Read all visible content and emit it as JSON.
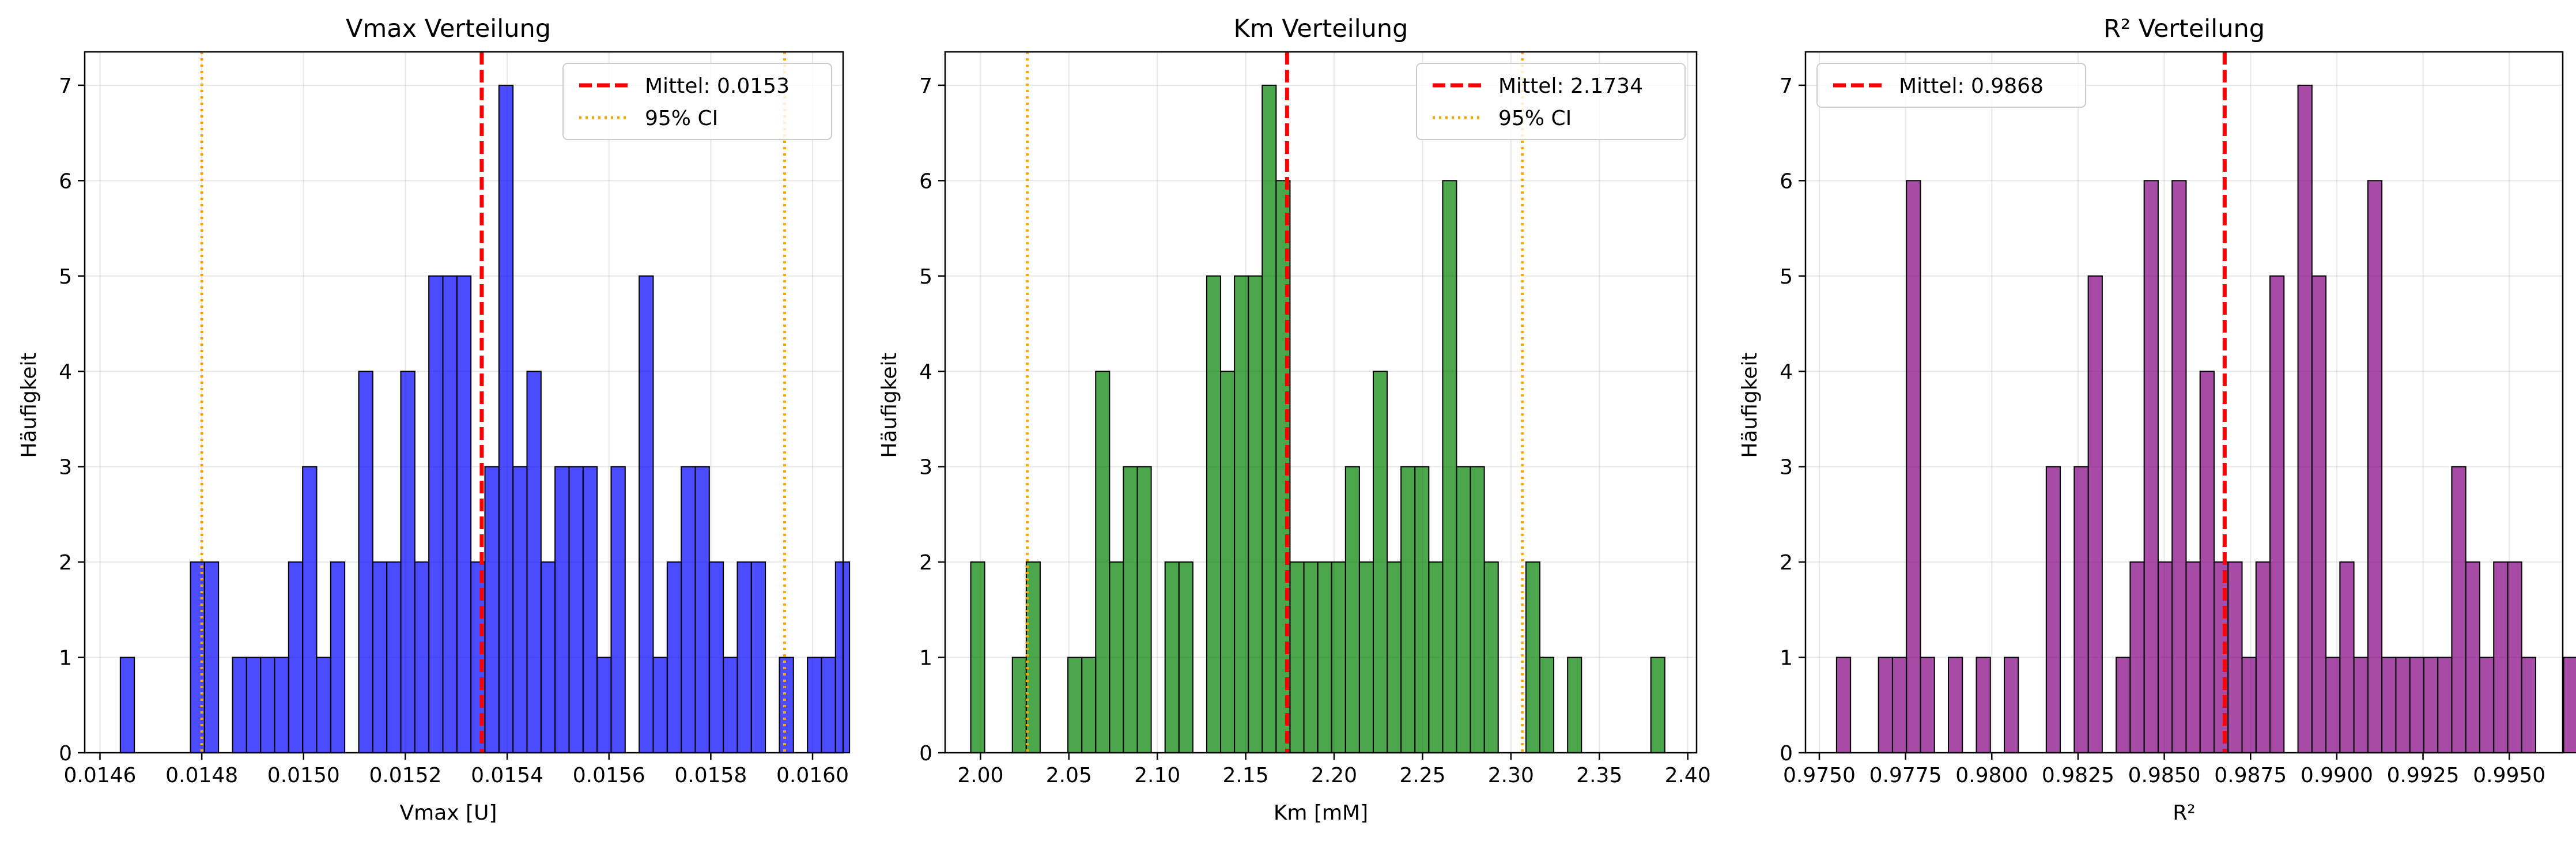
{
  "figure": {
    "background": "#ffffff"
  },
  "chart_data": [
    {
      "type": "bar",
      "title": "Vmax Verteilung",
      "xlabel": "Vmax [U]",
      "ylabel": "Häufigkeit",
      "xlim": [
        0.01457,
        0.01606
      ],
      "ylim": [
        0,
        7.35
      ],
      "xticks": [
        0.0146,
        0.0148,
        0.015,
        0.0152,
        0.0154,
        0.0156,
        0.0158,
        0.016
      ],
      "xtick_labels": [
        "0.0146",
        "0.0148",
        "0.0150",
        "0.0152",
        "0.0154",
        "0.0156",
        "0.0158",
        "0.0160"
      ],
      "yticks": [
        0,
        1,
        2,
        3,
        4,
        5,
        6,
        7
      ],
      "ytick_labels": [
        "0",
        "1",
        "2",
        "3",
        "4",
        "5",
        "6",
        "7"
      ],
      "grid": true,
      "bar_color": "#0000ff",
      "bar_opacity": 0.7,
      "edge_color": "#000000",
      "bin_start": 0.01464,
      "bin_width": 2.755e-05,
      "counts": [
        1,
        0,
        0,
        0,
        0,
        2,
        2,
        0,
        1,
        1,
        1,
        1,
        2,
        3,
        1,
        2,
        0,
        4,
        2,
        2,
        4,
        2,
        5,
        5,
        5,
        2,
        3,
        7,
        3,
        4,
        2,
        3,
        3,
        3,
        1,
        3,
        0,
        5,
        1,
        2,
        3,
        3,
        2,
        1,
        2,
        2,
        0,
        1,
        0,
        1,
        1,
        2
      ],
      "lines": [
        {
          "label": "Mittel: 0.0153",
          "x": 0.01535,
          "style": "dashed",
          "color": "#ff0000"
        },
        {
          "label": "95% CI",
          "x": 0.0148,
          "style": "dotted",
          "color": "#ffa500"
        },
        {
          "label": "",
          "x": 0.015945,
          "style": "dotted",
          "color": "#ffa500"
        }
      ],
      "legend_entries": [
        {
          "label": "Mittel: 0.0153",
          "style": "dashed",
          "color": "#ff0000"
        },
        {
          "label": "95% CI",
          "style": "dotted",
          "color": "#ffa500"
        }
      ],
      "legend_position": "top-right"
    },
    {
      "type": "bar",
      "title": "Km Verteilung",
      "xlabel": "Km [mM]",
      "ylabel": "Häufigkeit",
      "xlim": [
        1.98,
        2.405
      ],
      "ylim": [
        0,
        7.35
      ],
      "xticks": [
        2.0,
        2.05,
        2.1,
        2.15,
        2.2,
        2.25,
        2.3,
        2.35,
        2.4
      ],
      "xtick_labels": [
        "2.00",
        "2.05",
        "2.10",
        "2.15",
        "2.20",
        "2.25",
        "2.30",
        "2.35",
        "2.40"
      ],
      "yticks": [
        0,
        1,
        2,
        3,
        4,
        5,
        6,
        7
      ],
      "ytick_labels": [
        "0",
        "1",
        "2",
        "3",
        "4",
        "5",
        "6",
        "7"
      ],
      "grid": true,
      "bar_color": "#008000",
      "bar_opacity": 0.7,
      "edge_color": "#000000",
      "bin_start": 1.9945,
      "bin_width": 0.00785,
      "counts": [
        2,
        0,
        0,
        1,
        2,
        0,
        0,
        1,
        1,
        4,
        2,
        3,
        3,
        0,
        2,
        2,
        0,
        5,
        4,
        5,
        5,
        7,
        6,
        2,
        2,
        2,
        2,
        3,
        2,
        4,
        2,
        3,
        3,
        2,
        6,
        3,
        3,
        2,
        0,
        0,
        2,
        1,
        0,
        1,
        0,
        0,
        0,
        0,
        0,
        1
      ],
      "lines": [
        {
          "label": "Mittel: 2.1734",
          "x": 2.1734,
          "style": "dashed",
          "color": "#ff0000"
        },
        {
          "label": "95% CI",
          "x": 2.0265,
          "style": "dotted",
          "color": "#ffa500"
        },
        {
          "label": "",
          "x": 2.3065,
          "style": "dotted",
          "color": "#ffa500"
        }
      ],
      "legend_entries": [
        {
          "label": "Mittel: 2.1734",
          "style": "dashed",
          "color": "#ff0000"
        },
        {
          "label": "95% CI",
          "style": "dotted",
          "color": "#ffa500"
        }
      ],
      "legend_position": "top-right"
    },
    {
      "type": "bar",
      "title": "R² Verteilung",
      "xlabel": "R²",
      "ylabel": "Häufigkeit",
      "xlim": [
        0.9746,
        0.99655
      ],
      "ylim": [
        0,
        7.35
      ],
      "xticks": [
        0.975,
        0.9775,
        0.98,
        0.9825,
        0.985,
        0.9875,
        0.99,
        0.9925,
        0.995
      ],
      "xtick_labels": [
        "0.9750",
        "0.9775",
        "0.9800",
        "0.9825",
        "0.9850",
        "0.9875",
        "0.9900",
        "0.9925",
        "0.9950"
      ],
      "yticks": [
        0,
        1,
        2,
        3,
        4,
        5,
        6,
        7
      ],
      "ytick_labels": [
        "0",
        "1",
        "2",
        "3",
        "4",
        "5",
        "6",
        "7"
      ],
      "grid": true,
      "bar_color": "#800080",
      "bar_opacity": 0.7,
      "edge_color": "#000000",
      "bin_start": 0.9755,
      "bin_width": 0.0004053,
      "counts": [
        1,
        0,
        0,
        1,
        1,
        6,
        1,
        0,
        1,
        0,
        1,
        0,
        1,
        0,
        0,
        3,
        0,
        3,
        5,
        0,
        1,
        2,
        6,
        2,
        6,
        2,
        4,
        2,
        2,
        1,
        2,
        5,
        0,
        7,
        5,
        1,
        2,
        1,
        6,
        1,
        1,
        1,
        1,
        1,
        3,
        2,
        1,
        2,
        2,
        1,
        0,
        0,
        1
      ],
      "lines": [
        {
          "label": "Mittel: 0.9868",
          "x": 0.98675,
          "style": "dashed",
          "color": "#ff0000"
        }
      ],
      "legend_entries": [
        {
          "label": "Mittel: 0.9868",
          "style": "dashed",
          "color": "#ff0000"
        }
      ],
      "legend_position": "top-left"
    }
  ]
}
